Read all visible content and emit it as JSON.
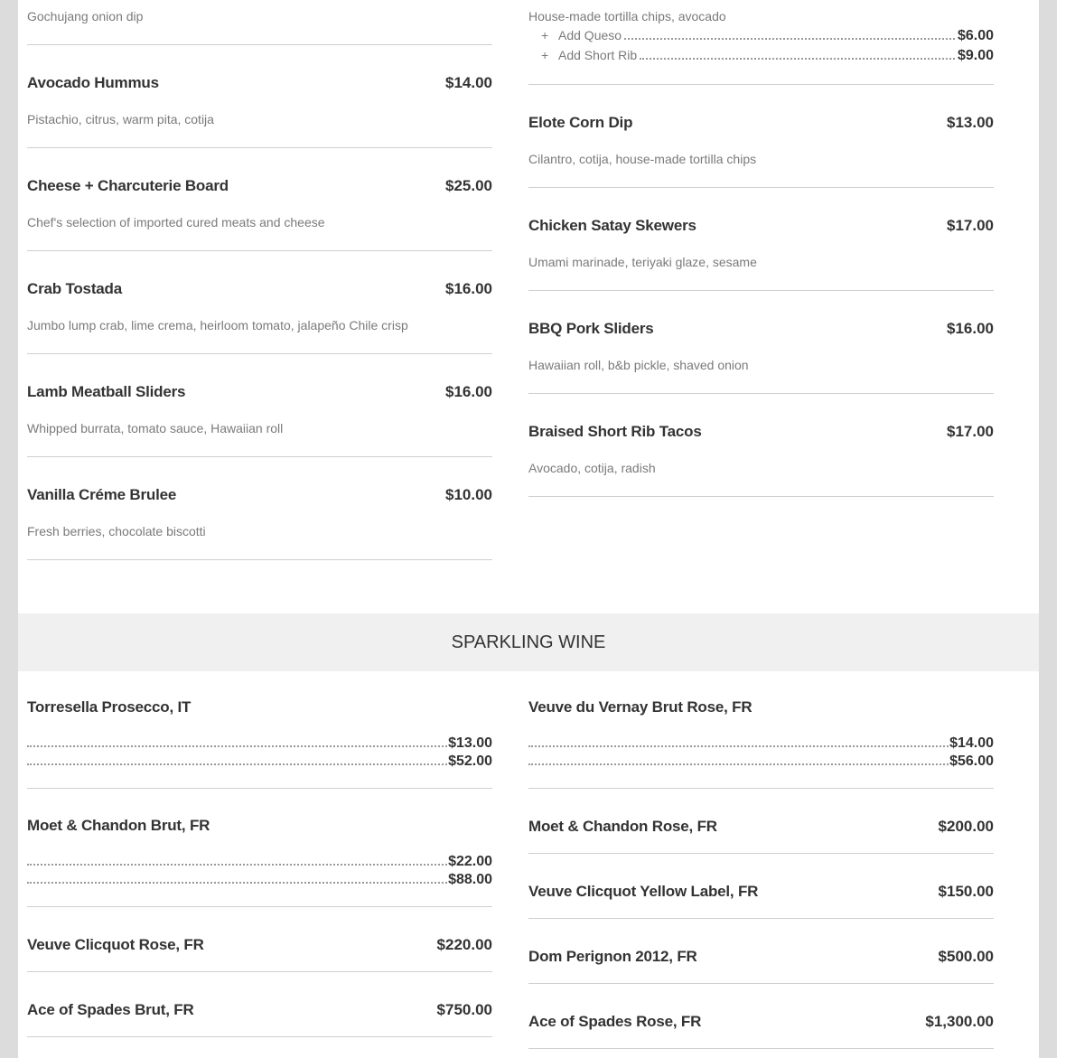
{
  "appetizers_left": [
    {
      "desc": "Gochujang onion dip"
    },
    {
      "name": "Avocado Hummus",
      "price": "$14.00",
      "desc": "Pistachio, citrus, warm pita, cotija"
    },
    {
      "name": "Cheese + Charcuterie Board",
      "price": "$25.00",
      "desc": "Chef's selection of imported cured meats and cheese"
    },
    {
      "name": "Crab Tostada",
      "price": "$16.00",
      "desc": "Jumbo lump crab, lime crema, heirloom tomato, jalapeño Chile crisp"
    },
    {
      "name": "Lamb Meatball Sliders",
      "price": "$16.00",
      "desc": "Whipped burrata, tomato sauce, Hawaiian roll"
    },
    {
      "name": "Vanilla Créme Brulee",
      "price": "$10.00",
      "desc": "Fresh berries, chocolate biscotti"
    }
  ],
  "appetizers_right": [
    {
      "desc": "House-made tortilla chips, avocado",
      "addons": [
        {
          "label": "Add Queso",
          "price": "$6.00"
        },
        {
          "label": "Add Short Rib",
          "price": "$9.00"
        }
      ]
    },
    {
      "name": "Elote Corn Dip",
      "price": "$13.00",
      "desc": "Cilantro, cotija, house-made tortilla chips"
    },
    {
      "name": "Chicken Satay Skewers",
      "price": "$17.00",
      "desc": "Umami marinade, teriyaki glaze, sesame"
    },
    {
      "name": "BBQ Pork Sliders",
      "price": "$16.00",
      "desc": "Hawaiian roll, b&b pickle, shaved onion"
    },
    {
      "name": "Braised Short Rib Tacos",
      "price": "$17.00",
      "desc": "Avocado, cotija, radish"
    }
  ],
  "sparkling": {
    "title": "SPARKLING WINE",
    "left": [
      {
        "name": "Torresella Prosecco, IT",
        "prices": [
          "$13.00",
          "$52.00"
        ]
      },
      {
        "name": "Moet & Chandon Brut, FR",
        "prices": [
          "$22.00",
          "$88.00"
        ]
      },
      {
        "name": "Veuve Clicquot Rose, FR",
        "price": "$220.00"
      },
      {
        "name": "Ace of Spades Brut, FR",
        "price": "$750.00"
      }
    ],
    "right": [
      {
        "name": "Veuve du Vernay Brut Rose, FR",
        "prices": [
          "$14.00",
          "$56.00"
        ]
      },
      {
        "name": "Moet & Chandon Rose, FR",
        "price": "$200.00"
      },
      {
        "name": "Veuve Clicquot Yellow Label, FR",
        "price": "$150.00"
      },
      {
        "name": "Dom Perignon 2012, FR",
        "price": "$500.00"
      },
      {
        "name": "Ace of Spades Rose, FR",
        "price": "$1,300.00"
      }
    ]
  }
}
